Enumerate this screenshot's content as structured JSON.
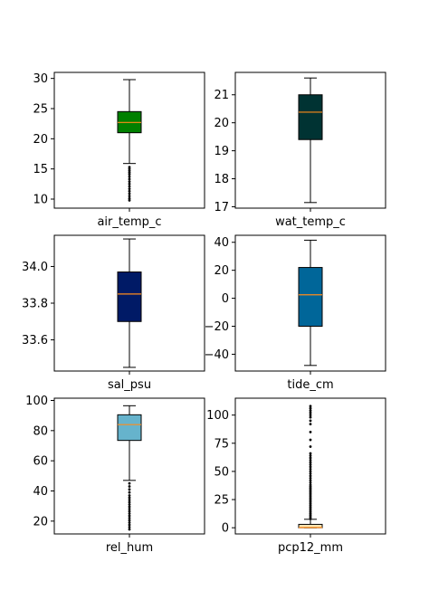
{
  "chart_data": [
    {
      "type": "box",
      "xlabel": "air_temp_c",
      "color": "#008000",
      "ylim": [
        8.5,
        31
      ],
      "yticks": [
        10,
        15,
        20,
        25,
        30
      ],
      "box": {
        "whisker_low": 15.9,
        "q1": 21.0,
        "median": 22.7,
        "q3": 24.5,
        "whisker_high": 29.8
      },
      "fliers": [
        15.3,
        15.0,
        14.7,
        14.4,
        14.1,
        13.7,
        13.3,
        12.9,
        12.5,
        12.1,
        11.7,
        11.3,
        10.9,
        10.5,
        10.1,
        9.8
      ]
    },
    {
      "type": "box",
      "xlabel": "wat_temp_c",
      "color": "#003333",
      "ylim": [
        16.95,
        21.8
      ],
      "yticks": [
        17,
        18,
        19,
        20,
        21
      ],
      "box": {
        "whisker_low": 17.15,
        "q1": 19.4,
        "median": 20.38,
        "q3": 21.0,
        "whisker_high": 21.6
      },
      "fliers": []
    },
    {
      "type": "box",
      "xlabel": "sal_psu",
      "color": "#001a66",
      "ylim": [
        33.43,
        34.17
      ],
      "yticks": [
        33.6,
        33.8,
        34.0
      ],
      "box": {
        "whisker_low": 33.45,
        "q1": 33.7,
        "median": 33.85,
        "q3": 33.97,
        "whisker_high": 34.15
      },
      "fliers": []
    },
    {
      "type": "box",
      "xlabel": "tide_cm",
      "color": "#006699",
      "ylim": [
        -52,
        45
      ],
      "yticks": [
        -40,
        -20,
        0,
        20,
        40
      ],
      "box": {
        "whisker_low": -48,
        "q1": -20,
        "median": 2.5,
        "q3": 22,
        "whisker_high": 41.5
      },
      "fliers": []
    },
    {
      "type": "box",
      "xlabel": "rel_hum",
      "color": "#66b3cc",
      "ylim": [
        11.5,
        101.5
      ],
      "yticks": [
        20,
        40,
        60,
        80,
        100
      ],
      "box": {
        "whisker_low": 47,
        "q1": 73.5,
        "median": 84,
        "q3": 90.5,
        "whisker_high": 96.5
      },
      "fliers": [
        45,
        43,
        41,
        39,
        37,
        35.5,
        34,
        32.5,
        31,
        29.5,
        28,
        26.5,
        25,
        23.5,
        22,
        20.5,
        19,
        17.5,
        16,
        14.5
      ]
    },
    {
      "type": "box",
      "xlabel": "pcp12_mm",
      "color": "#ffe6b3",
      "ylim": [
        -5.5,
        115
      ],
      "yticks": [
        0,
        25,
        50,
        75,
        100
      ],
      "box": {
        "whisker_low": 0,
        "q1": 0,
        "median": 0.2,
        "q3": 3.0,
        "whisker_high": 7.5
      },
      "fliers": [
        8,
        9.5,
        11,
        12.5,
        14,
        15.5,
        17,
        18.5,
        20,
        21.5,
        23,
        24.5,
        26,
        27.5,
        29,
        30.5,
        32,
        33.5,
        35,
        36.5,
        38,
        40,
        42,
        44,
        46,
        48,
        50,
        52,
        54,
        56,
        58,
        60,
        62,
        64,
        66,
        72,
        78,
        85,
        92,
        95,
        98,
        100,
        102,
        104,
        106,
        108
      ]
    }
  ]
}
